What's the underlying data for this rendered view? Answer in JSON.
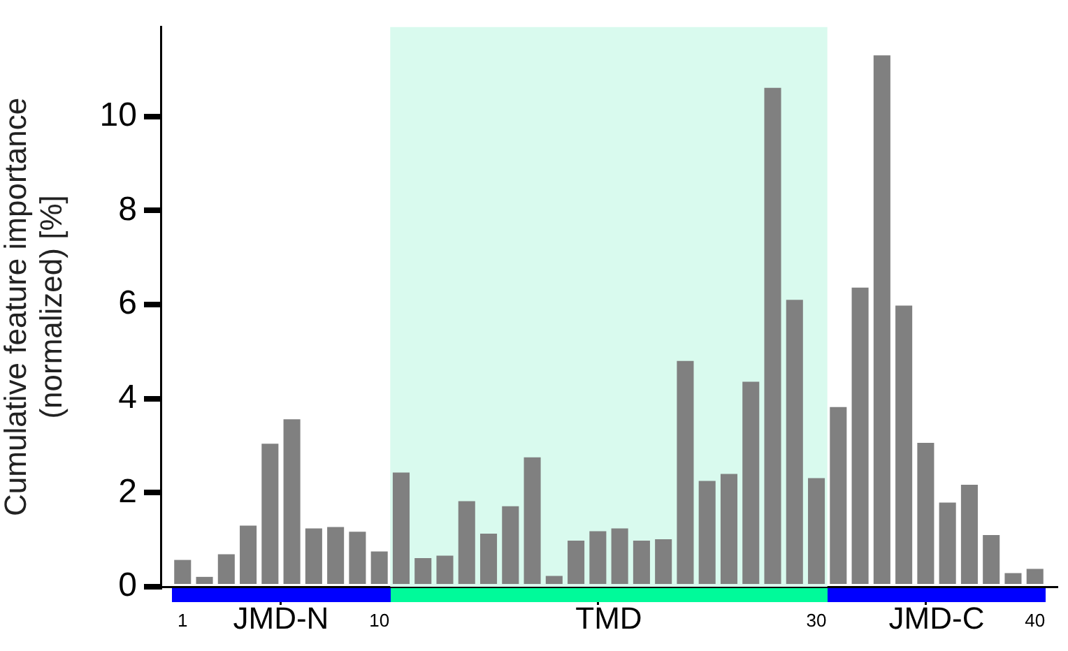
{
  "chart_data": {
    "type": "bar",
    "ylabel": "Cumulative feature importance\n(normalized) [%]",
    "x": [
      1,
      2,
      3,
      4,
      5,
      6,
      7,
      8,
      9,
      10,
      11,
      12,
      13,
      14,
      15,
      16,
      17,
      18,
      19,
      20,
      21,
      22,
      23,
      24,
      25,
      26,
      27,
      28,
      29,
      30,
      31,
      32,
      33,
      34,
      35,
      36,
      37,
      38,
      39,
      40
    ],
    "values": [
      0.57,
      0.21,
      0.69,
      1.3,
      3.04,
      3.56,
      1.24,
      1.27,
      1.17,
      0.75,
      2.43,
      0.61,
      0.66,
      1.82,
      1.13,
      1.71,
      2.75,
      0.23,
      0.98,
      1.18,
      1.24,
      0.98,
      1.01,
      4.8,
      2.25,
      2.4,
      4.36,
      10.61,
      6.1,
      2.31,
      3.82,
      6.36,
      11.3,
      5.98,
      3.06,
      1.79,
      2.17,
      1.1,
      0.29,
      0.38
    ],
    "color": "#808080",
    "xlim": [
      0,
      41
    ],
    "xticks": [
      1,
      10,
      30,
      40
    ],
    "ylim": [
      0,
      11.9
    ],
    "yticks": [
      0,
      2,
      4,
      6,
      8,
      10
    ],
    "bands": [
      {
        "axis": "x",
        "from": 10.5,
        "to": 30.5,
        "label": "TMD",
        "color": "#d9faee"
      }
    ],
    "annotations": [
      "JMD-N",
      "JMD-C"
    ],
    "grid": false,
    "legend": false
  }
}
